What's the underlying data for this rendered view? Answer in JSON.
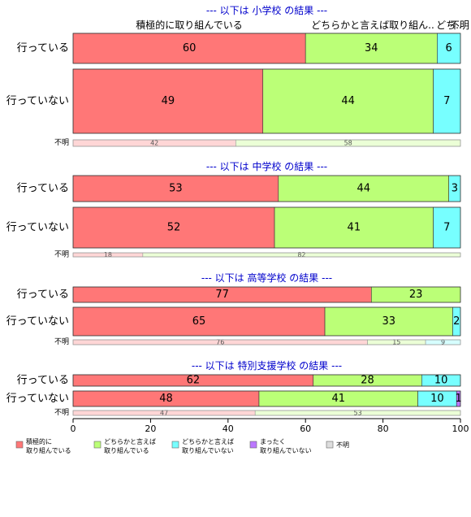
{
  "colors": {
    "active": "#ff7777",
    "somewhat_active": "#bbff77",
    "somewhat_inactive": "#77ffff",
    "inactive": "#bb77ff",
    "unknown": "#dddddd",
    "panel_title": "#0000cc",
    "bar_border": "#333333"
  },
  "chart_data": {
    "type": "bar",
    "orientation": "horizontal",
    "stacked": true,
    "percent": true,
    "xlim": [
      0,
      100
    ],
    "x_ticks": [
      0,
      20,
      40,
      60,
      80,
      100
    ],
    "top_category_labels": [
      "積極的に取り組んでいる",
      "どちらかと言えば取り組ん..",
      "どち..",
      "不明"
    ],
    "legend_placement": "bottom",
    "legend": [
      {
        "line1": "積極的に",
        "line2": "取り組んでいる",
        "color_key": "active"
      },
      {
        "line1": "どちらかと言えば",
        "line2": "取り組んでいる",
        "color_key": "somewhat_active"
      },
      {
        "line1": "どちらかと言えば",
        "line2": "取り組んでいない",
        "color_key": "somewhat_inactive"
      },
      {
        "line1": "まったく",
        "line2": "取り組んでいない",
        "color_key": "inactive"
      },
      {
        "line1": "不明",
        "line2": "",
        "color_key": "unknown"
      }
    ],
    "panels": [
      {
        "title": "--- 以下は 小学校 の結果 ---",
        "rows": [
          {
            "label": "行っている",
            "values": [
              60,
              34,
              6,
              0,
              0
            ]
          },
          {
            "label": "行っていない",
            "values": [
              49,
              44,
              7,
              0,
              0
            ]
          },
          {
            "label": "不明",
            "values": [
              42,
              58,
              0,
              0,
              0
            ]
          }
        ]
      },
      {
        "title": "--- 以下は 中学校 の結果 ---",
        "rows": [
          {
            "label": "行っている",
            "values": [
              53,
              44,
              3,
              0,
              0
            ]
          },
          {
            "label": "行っていない",
            "values": [
              52,
              41,
              7,
              0,
              0
            ]
          },
          {
            "label": "不明",
            "values": [
              18,
              82,
              0,
              0,
              0
            ]
          }
        ]
      },
      {
        "title": "--- 以下は 高等学校 の結果 ---",
        "rows": [
          {
            "label": "行っている",
            "values": [
              77,
              23,
              0,
              0,
              0
            ]
          },
          {
            "label": "行っていない",
            "values": [
              65,
              33,
              2,
              0,
              0
            ]
          },
          {
            "label": "不明",
            "values": [
              76,
              15,
              9,
              0,
              0
            ]
          }
        ]
      },
      {
        "title": "--- 以下は 特別支援学校 の結果 ---",
        "rows": [
          {
            "label": "行っている",
            "values": [
              62,
              28,
              10,
              0,
              0
            ]
          },
          {
            "label": "行っていない",
            "values": [
              48,
              41,
              10,
              1,
              0
            ]
          },
          {
            "label": "不明",
            "values": [
              47,
              53,
              0,
              0,
              0
            ]
          }
        ]
      }
    ]
  }
}
